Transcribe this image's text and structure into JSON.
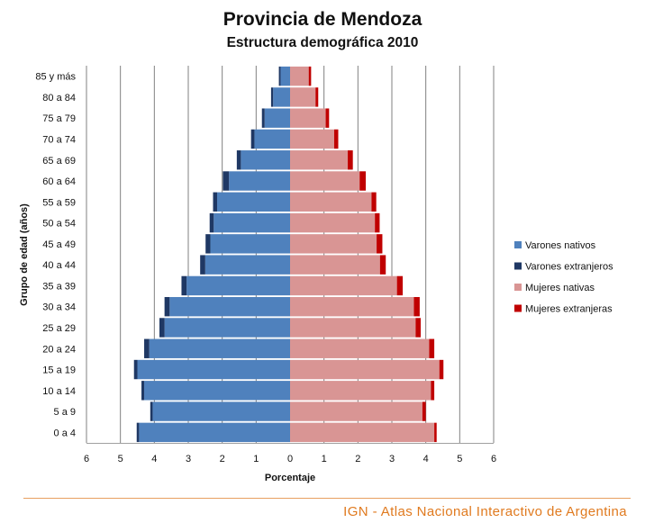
{
  "header": {
    "title": "Provincia de Mendoza",
    "subtitle": "Estructura demográfica 2010"
  },
  "footer": {
    "credit": "IGN - Atlas Nacional Interactivo de Argentina"
  },
  "colors": {
    "male_native": "#4f81bd",
    "male_foreign": "#1f3864",
    "female_native": "#d99594",
    "female_foreign": "#c00000",
    "gridline": "#808080",
    "footer_accent": "#e07a1f"
  },
  "chart_data": {
    "type": "bar",
    "orientation": "horizontal-population-pyramid",
    "title": "Provincia de Mendoza",
    "subtitle": "Estructura demográfica 2010",
    "xlabel": "Porcentaje",
    "ylabel": "Grupo de edad (años)",
    "xlim": [
      -6,
      6
    ],
    "x_ticks": [
      -6,
      -5,
      -4,
      -3,
      -2,
      -1,
      0,
      1,
      2,
      3,
      4,
      5,
      6
    ],
    "x_tick_labels": [
      "6",
      "5",
      "4",
      "3",
      "2",
      "1",
      "0",
      "1",
      "2",
      "3",
      "4",
      "5",
      "6"
    ],
    "grid": "vertical",
    "legend_position": "right",
    "categories": [
      "0 a 4",
      "5 a 9",
      "10 a 14",
      "15 a 19",
      "20 a 24",
      "25 a 29",
      "30 a 34",
      "35 a 39",
      "40 a 44",
      "45 a 49",
      "50 a 54",
      "55 a 59",
      "60 a 64",
      "65 a 69",
      "70 a 74",
      "75 a 79",
      "80 a 84",
      "85 y más"
    ],
    "series": [
      {
        "name": "Varones nativos",
        "side": "left",
        "values": [
          4.45,
          4.05,
          4.3,
          4.5,
          4.15,
          3.7,
          3.55,
          3.05,
          2.5,
          2.35,
          2.25,
          2.15,
          1.8,
          1.45,
          1.05,
          0.75,
          0.5,
          0.28
        ]
      },
      {
        "name": "Varones extranjeros",
        "side": "left",
        "values": [
          0.07,
          0.07,
          0.08,
          0.1,
          0.15,
          0.15,
          0.15,
          0.15,
          0.15,
          0.14,
          0.12,
          0.12,
          0.18,
          0.12,
          0.1,
          0.08,
          0.06,
          0.05
        ]
      },
      {
        "name": "Mujeres nativas",
        "side": "right",
        "values": [
          4.25,
          3.9,
          4.15,
          4.4,
          4.1,
          3.7,
          3.65,
          3.15,
          2.65,
          2.55,
          2.5,
          2.4,
          2.05,
          1.7,
          1.3,
          1.05,
          0.75,
          0.55
        ]
      },
      {
        "name": "Mujeres extranjeras",
        "side": "right",
        "values": [
          0.07,
          0.1,
          0.1,
          0.12,
          0.15,
          0.15,
          0.17,
          0.17,
          0.17,
          0.17,
          0.14,
          0.14,
          0.18,
          0.15,
          0.12,
          0.1,
          0.08,
          0.07
        ]
      }
    ]
  }
}
